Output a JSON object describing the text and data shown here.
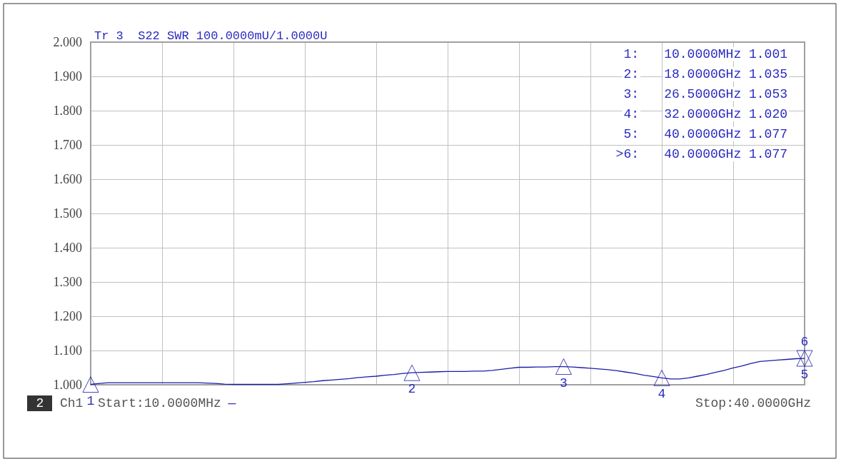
{
  "chart_data": {
    "type": "line",
    "title": "Tr 3  S22 SWR 100.0000mU/1.0000U",
    "categories": [
      null,
      null,
      null,
      null,
      null,
      null,
      null,
      null,
      null,
      null,
      null,
      null,
      null,
      null,
      null,
      null,
      null,
      null,
      null,
      null,
      null,
      null,
      null,
      null,
      null,
      null,
      null,
      null,
      null,
      null,
      null,
      null,
      null,
      null,
      null,
      null,
      null,
      null,
      null,
      null,
      null,
      null,
      null,
      null,
      null,
      null,
      null,
      null,
      null,
      null,
      null,
      null,
      null,
      null,
      null,
      null,
      null,
      null,
      null,
      null,
      null,
      null,
      null,
      null,
      null,
      null,
      null,
      null,
      null,
      null,
      null,
      null,
      null,
      null,
      null,
      null,
      null,
      null,
      null,
      null,
      null
    ],
    "ylim": [
      1,
      2
    ],
    "yticks": [
      {
        "value": 1,
        "label": "1.000"
      },
      {
        "value": 1.1,
        "label": "1.100"
      },
      {
        "value": 1.2,
        "label": "1.200"
      },
      {
        "value": 1.3,
        "label": "1.300"
      },
      {
        "value": 1.4,
        "label": "1.400"
      },
      {
        "value": 1.5,
        "label": "1.500"
      },
      {
        "value": 1.6,
        "label": "1.600"
      },
      {
        "value": 1.7,
        "label": "1.700"
      },
      {
        "value": 1.8,
        "label": "1.800"
      },
      {
        "value": 1.9,
        "label": "1.900"
      },
      {
        "value": 2,
        "label": "2.000"
      }
    ],
    "tick_labels": "y",
    "grid": true,
    "series": [
      {
        "color": "#1c1ca8",
        "marker": "none",
        "values": [
          1.001,
          1.004,
          1.006,
          1.006,
          1.006,
          1.006,
          1.006,
          1.006,
          1.006,
          1.006,
          1.006,
          1.006,
          1.006,
          1.005,
          1.004,
          1.002,
          1.001,
          1.001,
          1.001,
          1.001,
          1.001,
          1.001,
          1.003,
          1.005,
          1.007,
          1.009,
          1.012,
          1.014,
          1.016,
          1.018,
          1.021,
          1.023,
          1.025,
          1.028,
          1.03,
          1.033,
          1.035,
          1.036,
          1.037,
          1.038,
          1.039,
          1.039,
          1.039,
          1.04,
          1.04,
          1.042,
          1.045,
          1.048,
          1.051,
          1.051,
          1.052,
          1.052,
          1.053,
          1.053,
          1.052,
          1.05,
          1.048,
          1.046,
          1.044,
          1.041,
          1.037,
          1.033,
          1.028,
          1.024,
          1.02,
          1.017,
          1.017,
          1.02,
          1.025,
          1.03,
          1.036,
          1.042,
          1.049,
          1.055,
          1.062,
          1.068,
          1.07,
          1.072,
          1.074,
          1.076,
          1.077
        ]
      },
      {
        "type": "scatter",
        "color": "#1c1ca8",
        "marker": "triangle",
        "values": [
          1.001,
          null,
          null,
          null,
          null,
          null,
          null,
          null,
          null,
          null,
          null,
          null,
          null,
          null,
          null,
          null,
          null,
          null,
          null,
          null,
          null,
          null,
          null,
          null,
          null,
          null,
          null,
          null,
          null,
          null,
          null,
          null,
          null,
          null,
          null,
          null,
          1.035,
          null,
          null,
          null,
          null,
          null,
          null,
          null,
          null,
          null,
          null,
          null,
          null,
          null,
          null,
          null,
          null,
          1.053,
          null,
          null,
          null,
          null,
          null,
          null,
          null,
          null,
          null,
          null,
          1.02,
          null,
          null,
          null,
          null,
          null,
          null,
          null,
          null,
          null,
          null,
          null,
          null,
          null,
          null,
          null,
          1.077
        ]
      },
      {
        "type": "scatter",
        "color": "#1c1ca8",
        "marker": "triangle",
        "values": [
          null,
          null,
          null,
          null,
          null,
          null,
          null,
          null,
          null,
          null,
          null,
          null,
          null,
          null,
          null,
          null,
          null,
          null,
          null,
          null,
          null,
          null,
          null,
          null,
          null,
          null,
          null,
          null,
          null,
          null,
          null,
          null,
          null,
          null,
          null,
          null,
          null,
          null,
          null,
          null,
          null,
          null,
          null,
          null,
          null,
          null,
          null,
          null,
          null,
          null,
          null,
          null,
          null,
          null,
          null,
          null,
          null,
          null,
          null,
          null,
          null,
          null,
          null,
          null,
          null,
          null,
          null,
          null,
          null,
          null,
          null,
          null,
          null,
          null,
          null,
          null,
          null,
          null,
          null,
          null,
          1.077
        ]
      }
    ],
    "annotations": [
      "1:",
      "10.0000MHz 1.001",
      "2:",
      "18.0000GHz 1.035",
      "3:",
      "26.5000GHz 1.053",
      "4:",
      "32.0000GHz 1.020",
      "5:",
      "40.0000GHz 1.077",
      ">6:",
      "40.0000GHz 1.077",
      "2",
      "Ch1",
      "Start:10.0000MHz",
      "—",
      "Stop:40.0000GHz",
      "1",
      "2",
      "3",
      "4",
      "5",
      "6"
    ]
  }
}
